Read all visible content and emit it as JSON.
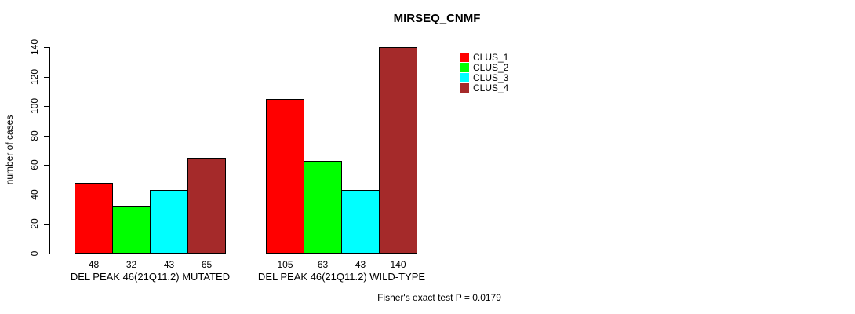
{
  "title": "MIRSEQ_CNMF",
  "footer": "Fisher's exact test P = 0.0179",
  "chart_data": {
    "type": "bar",
    "title": "MIRSEQ_CNMF",
    "xlabel": "",
    "ylabel": "number of cases",
    "ylim": [
      0,
      140
    ],
    "yticks": [
      0,
      20,
      40,
      60,
      80,
      100,
      120,
      140
    ],
    "grid": false,
    "legend_position": "right",
    "categories": [
      "DEL PEAK 46(21Q11.2) MUTATED",
      "DEL PEAK 46(21Q11.2) WILD-TYPE"
    ],
    "series": [
      {
        "name": "CLUS_1",
        "color": "#FF0000",
        "values": [
          48,
          105
        ]
      },
      {
        "name": "CLUS_2",
        "color": "#00FF00",
        "values": [
          32,
          63
        ]
      },
      {
        "name": "CLUS_3",
        "color": "#00FFFF",
        "values": [
          43,
          43
        ]
      },
      {
        "name": "CLUS_4",
        "color": "#A52A2A",
        "values": [
          65,
          140
        ]
      }
    ],
    "bar_value_labels": [
      [
        48,
        32,
        43,
        65
      ],
      [
        105,
        63,
        43,
        140
      ]
    ],
    "annotation": "Fisher's exact test P = 0.0179"
  }
}
